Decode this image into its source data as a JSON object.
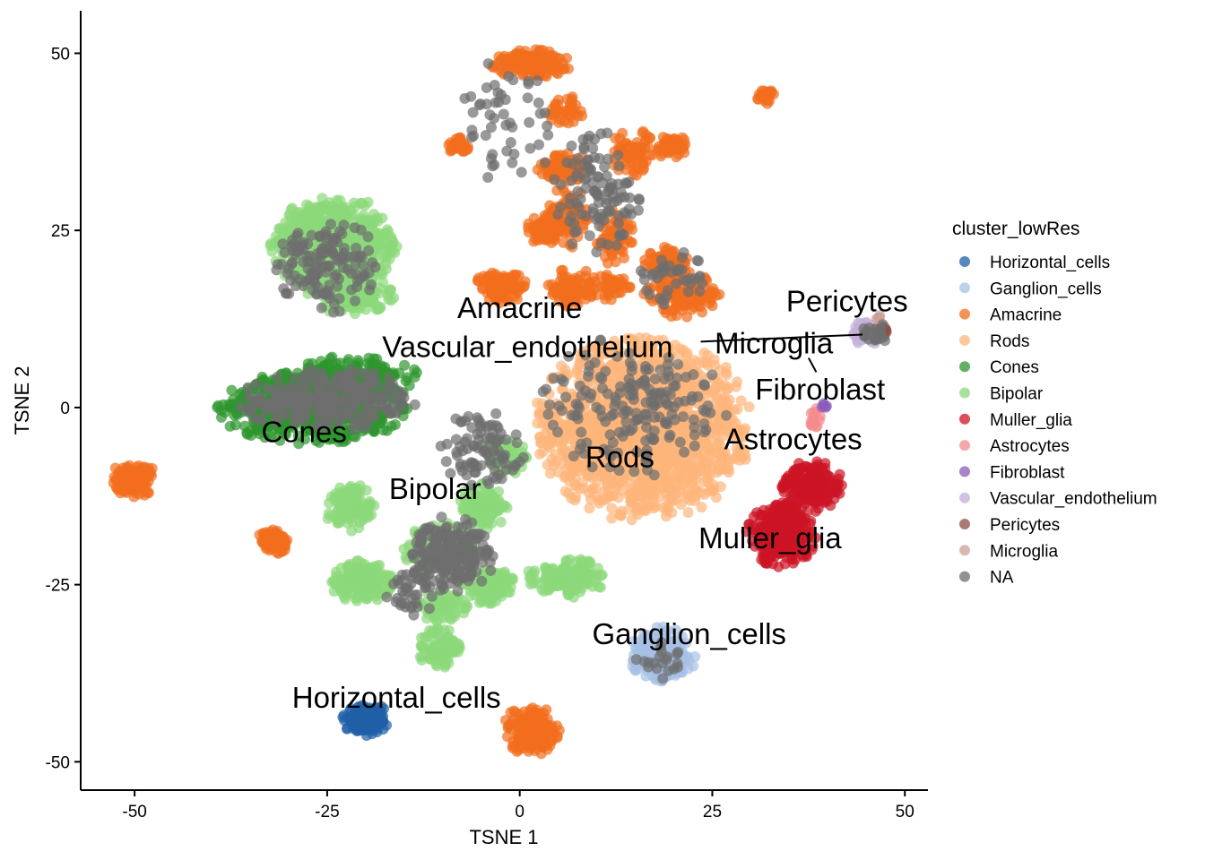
{
  "chart_data": {
    "type": "scatter",
    "title": "",
    "xlabel": "TSNE 1",
    "ylabel": "TSNE 2",
    "xlim": [
      -57,
      53
    ],
    "ylim": [
      -54,
      56
    ],
    "x_ticks": [
      -50,
      -25,
      0,
      25,
      50
    ],
    "y_ticks": [
      -50,
      -25,
      0,
      25,
      50
    ],
    "x_tick_labels": [
      "-50",
      "-25",
      "0",
      "25",
      "50"
    ],
    "y_tick_labels": [
      "-50",
      "-25",
      "0",
      "25",
      "50"
    ],
    "grid": false,
    "legend": {
      "title": "cluster_lowRes",
      "placement": "right",
      "entries": [
        {
          "name": "Horizontal_cells",
          "color": "#1f5fa6"
        },
        {
          "name": "Ganglion_cells",
          "color": "#a6c1e6"
        },
        {
          "name": "Amacrine",
          "color": "#f26d1d"
        },
        {
          "name": "Rods",
          "color": "#fdb57a"
        },
        {
          "name": "Cones",
          "color": "#2d962d"
        },
        {
          "name": "Bipolar",
          "color": "#8bd97a"
        },
        {
          "name": "Muller_glia",
          "color": "#cc1425"
        },
        {
          "name": "Astrocytes",
          "color": "#f58a8e"
        },
        {
          "name": "Fibroblast",
          "color": "#8a5cba"
        },
        {
          "name": "Vascular_endothelium",
          "color": "#c3afd9"
        },
        {
          "name": "Pericytes",
          "color": "#8c4f45"
        },
        {
          "name": "Microglia",
          "color": "#c9a195"
        },
        {
          "name": "NA",
          "color": "#6e6e6e"
        }
      ]
    },
    "series": [
      {
        "name": "Horizontal_cells",
        "color": "#1f5fa6",
        "regions": [
          {
            "cx": -20,
            "cy": -44,
            "rx": 2.6,
            "ry": 2.2,
            "n": 150
          }
        ]
      },
      {
        "name": "Ganglion_cells",
        "color": "#a6c1e6",
        "regions": [
          {
            "cx": 18.5,
            "cy": -35,
            "rx": 3.8,
            "ry": 3.6,
            "n": 260
          }
        ]
      },
      {
        "name": "Amacrine",
        "color": "#f26d1d",
        "regions": [
          {
            "cx": 1.5,
            "cy": 48.5,
            "rx": 4.5,
            "ry": 1.8,
            "n": 150
          },
          {
            "cx": 32,
            "cy": 44,
            "rx": 1.4,
            "ry": 1.2,
            "n": 30
          },
          {
            "cx": 6,
            "cy": 42,
            "rx": 2.5,
            "ry": 2,
            "n": 40
          },
          {
            "cx": -8,
            "cy": 37,
            "rx": 1.5,
            "ry": 1.2,
            "n": 40
          },
          {
            "cx": 5.5,
            "cy": 34,
            "rx": 3,
            "ry": 2,
            "n": 80
          },
          {
            "cx": 15,
            "cy": 36,
            "rx": 3,
            "ry": 3,
            "n": 70
          },
          {
            "cx": 20,
            "cy": 37,
            "rx": 2,
            "ry": 1.5,
            "n": 40
          },
          {
            "cx": 6,
            "cy": 27,
            "rx": 2.5,
            "ry": 4,
            "n": 80
          },
          {
            "cx": 3,
            "cy": 25,
            "rx": 2,
            "ry": 1.8,
            "n": 60
          },
          {
            "cx": 12,
            "cy": 24,
            "rx": 2.5,
            "ry": 3.5,
            "n": 60
          },
          {
            "cx": 19,
            "cy": 20.5,
            "rx": 2.5,
            "ry": 2,
            "n": 80
          },
          {
            "cx": 21,
            "cy": 16,
            "rx": 4.5,
            "ry": 3,
            "n": 140
          },
          {
            "cx": -2.5,
            "cy": 17,
            "rx": 3,
            "ry": 2,
            "n": 100
          },
          {
            "cx": 7,
            "cy": 17,
            "rx": 3,
            "ry": 2.5,
            "n": 80
          },
          {
            "cx": 12,
            "cy": 17,
            "rx": 2,
            "ry": 2,
            "n": 40
          },
          {
            "cx": -50,
            "cy": -10,
            "rx": 2.6,
            "ry": 2.3,
            "n": 130
          },
          {
            "cx": -32,
            "cy": -19,
            "rx": 2,
            "ry": 1.8,
            "n": 70
          },
          {
            "cx": 1.5,
            "cy": -45.5,
            "rx": 3.2,
            "ry": 3.2,
            "n": 190
          }
        ]
      },
      {
        "name": "Rods",
        "color": "#fdb57a",
        "regions": [
          {
            "cx": 16,
            "cy": -3,
            "rx": 12.5,
            "ry": 11.5,
            "n": 1600
          }
        ]
      },
      {
        "name": "Cones",
        "color": "#2d962d",
        "regions": [
          {
            "cx": -27,
            "cy": 0,
            "rx": 11,
            "ry": 4.5,
            "n": 700
          },
          {
            "cx": -22,
            "cy": 4,
            "rx": 8,
            "ry": 3,
            "n": 250
          }
        ]
      },
      {
        "name": "Bipolar",
        "color": "#8bd97a",
        "regions": [
          {
            "cx": -24,
            "cy": 23,
            "rx": 7.5,
            "ry": 6,
            "n": 700
          },
          {
            "cx": -22,
            "cy": 16,
            "rx": 5,
            "ry": 2.5,
            "n": 150
          },
          {
            "cx": -20.5,
            "cy": -24.5,
            "rx": 3.5,
            "ry": 2.8,
            "n": 200
          },
          {
            "cx": -10,
            "cy": -20,
            "rx": 4.5,
            "ry": 3.5,
            "n": 200
          },
          {
            "cx": -4,
            "cy": -25,
            "rx": 3,
            "ry": 2.5,
            "n": 120
          },
          {
            "cx": 6,
            "cy": -24,
            "rx": 4.5,
            "ry": 2.5,
            "n": 160
          },
          {
            "cx": -10.5,
            "cy": -34,
            "rx": 2.5,
            "ry": 2.5,
            "n": 100
          },
          {
            "cx": -10,
            "cy": -28,
            "rx": 3,
            "ry": 2,
            "n": 80
          },
          {
            "cx": -22,
            "cy": -14,
            "rx": 3,
            "ry": 3,
            "n": 100
          },
          {
            "cx": -5,
            "cy": -14,
            "rx": 3,
            "ry": 3,
            "n": 120
          },
          {
            "cx": -2,
            "cy": -7,
            "rx": 2.5,
            "ry": 2.5,
            "n": 90
          }
        ]
      },
      {
        "name": "Muller_glia",
        "color": "#cc1425",
        "regions": [
          {
            "cx": 34,
            "cy": -18,
            "rx": 4,
            "ry": 4,
            "n": 300
          },
          {
            "cx": 38,
            "cy": -11,
            "rx": 3.5,
            "ry": 3.5,
            "n": 200
          }
        ]
      },
      {
        "name": "Astrocytes",
        "color": "#f58a8e",
        "regions": [
          {
            "cx": 38.5,
            "cy": -1.5,
            "rx": 0.8,
            "ry": 1.2,
            "n": 15
          }
        ]
      },
      {
        "name": "Fibroblast",
        "color": "#8a5cba",
        "regions": [
          {
            "cx": 39.5,
            "cy": 0.3,
            "rx": 0.6,
            "ry": 0.5,
            "n": 6
          }
        ]
      },
      {
        "name": "Vascular_endothelium",
        "color": "#c3afd9",
        "regions": [
          {
            "cx": 45,
            "cy": 10.5,
            "rx": 1.8,
            "ry": 1.5,
            "n": 50
          }
        ]
      },
      {
        "name": "Pericytes",
        "color": "#8c4f45",
        "regions": [
          {
            "cx": 47,
            "cy": 11,
            "rx": 0.9,
            "ry": 1.2,
            "n": 12
          }
        ]
      },
      {
        "name": "Microglia",
        "color": "#c9a195",
        "regions": [
          {
            "cx": 46.5,
            "cy": 12.5,
            "rx": 0.6,
            "ry": 0.5,
            "n": 4
          }
        ]
      },
      {
        "name": "NA",
        "color": "#6e6e6e",
        "regions": [
          {
            "cx": -25,
            "cy": 20,
            "rx": 6,
            "ry": 6,
            "n": 140
          },
          {
            "cx": -25,
            "cy": 1,
            "rx": 10,
            "ry": 4,
            "n": 260
          },
          {
            "cx": -9,
            "cy": -21,
            "rx": 5,
            "ry": 5,
            "n": 220
          },
          {
            "cx": -5,
            "cy": -6,
            "rx": 5,
            "ry": 5,
            "n": 90
          },
          {
            "cx": 10,
            "cy": 30,
            "rx": 5,
            "ry": 8,
            "n": 110
          },
          {
            "cx": 15,
            "cy": 0,
            "rx": 11,
            "ry": 9,
            "n": 180
          },
          {
            "cx": 20,
            "cy": 18,
            "rx": 4,
            "ry": 4,
            "n": 40
          },
          {
            "cx": 46,
            "cy": 10.5,
            "rx": 1.8,
            "ry": 1.5,
            "n": 20
          },
          {
            "cx": 18.5,
            "cy": -36,
            "rx": 3,
            "ry": 3,
            "n": 20
          },
          {
            "cx": -2,
            "cy": 40,
            "rx": 6,
            "ry": 10,
            "n": 50
          },
          {
            "cx": -14,
            "cy": -26,
            "rx": 3,
            "ry": 3,
            "n": 40
          }
        ]
      }
    ],
    "annotations": [
      {
        "text": "Amacrine",
        "x": 0,
        "y": 14
      },
      {
        "text": "Vascular_endothelium",
        "x": 1,
        "y": 8.5
      },
      {
        "text": "Microglia",
        "x": 33,
        "y": 9
      },
      {
        "text": "Pericytes",
        "x": 42.5,
        "y": 15
      },
      {
        "text": "Fibroblast",
        "x": 39,
        "y": 2.5
      },
      {
        "text": "Astrocytes",
        "x": 35.5,
        "y": -4.5
      },
      {
        "text": "Cones",
        "x": -28,
        "y": -3.5
      },
      {
        "text": "Rods",
        "x": 13,
        "y": -7
      },
      {
        "text": "Bipolar",
        "x": -11,
        "y": -11.5
      },
      {
        "text": "Muller_glia",
        "x": 32.5,
        "y": -18.5
      },
      {
        "text": "Ganglion_cells",
        "x": 22,
        "y": -32
      },
      {
        "text": "Horizontal_cells",
        "x": -16,
        "y": -41
      }
    ],
    "leader_lines": [
      {
        "x1": 23.5,
        "y1": 9.3,
        "x2": 44.5,
        "y2": 10.3
      },
      {
        "x1": 37.5,
        "y1": 7,
        "x2": 38.5,
        "y2": 5
      }
    ]
  }
}
